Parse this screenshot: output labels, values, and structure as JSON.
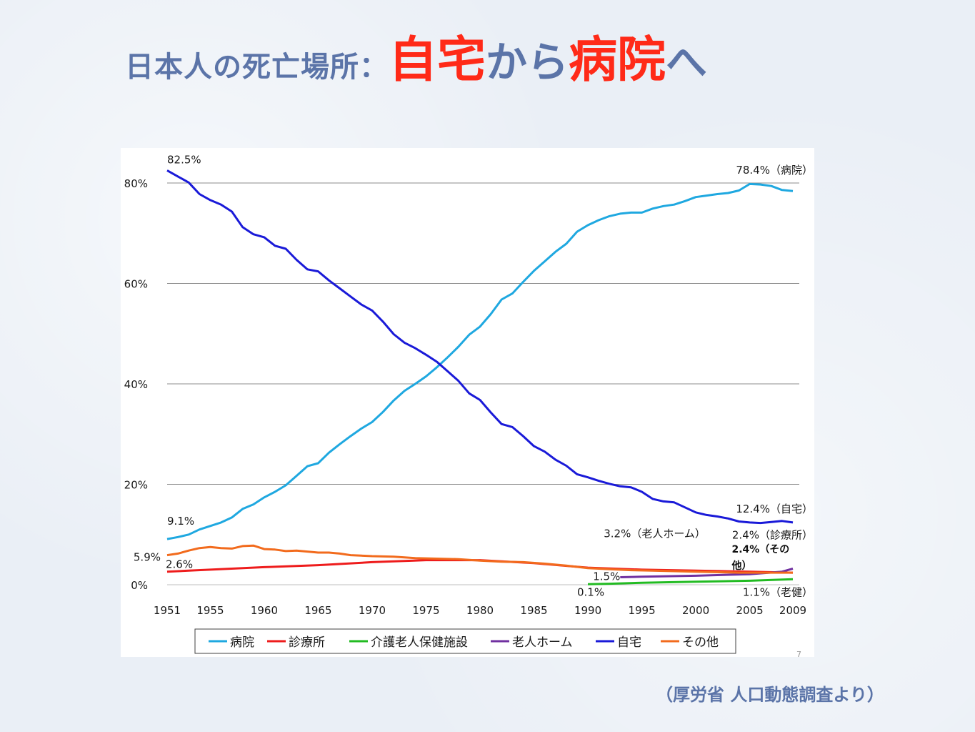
{
  "title": {
    "lead": "日本人の死亡場所：",
    "word1": "自宅",
    "connector": "から",
    "word2": "病院",
    "tail": "へ"
  },
  "source_note": "（厚労省 人口動態調査より）",
  "page_number": "7",
  "colors": {
    "title_blue": "#5b74a8",
    "title_red": "#ff2a18",
    "hospital": "#1fa8e0",
    "clinic": "#ee1c1c",
    "care_facility": "#22bb22",
    "nursing_home": "#7030a0",
    "home": "#1a1ad8",
    "other": "#f26b1d"
  },
  "chart_data": {
    "type": "line",
    "ylim": [
      0,
      85
    ],
    "xlim": [
      1951,
      2009
    ],
    "y_ticks": [
      0,
      20,
      40,
      60,
      80
    ],
    "y_tick_labels": [
      "0%",
      "20%",
      "40%",
      "60%",
      "80%"
    ],
    "x_ticks": [
      1951,
      1955,
      1960,
      1965,
      1970,
      1975,
      1980,
      1985,
      1990,
      1995,
      2000,
      2005,
      2009
    ],
    "x_tick_labels": [
      "1951",
      "1955",
      "1960",
      "1965",
      "1970",
      "1975",
      "1980",
      "1985",
      "1990",
      "1995",
      "2000",
      "2005",
      "2009"
    ],
    "grid": "horizontal",
    "legend_position": "bottom",
    "series": [
      {
        "name": "病院",
        "color": "#1fa8e0",
        "x": [
          1951,
          1952,
          1953,
          1954,
          1955,
          1956,
          1957,
          1958,
          1959,
          1960,
          1961,
          1962,
          1963,
          1964,
          1965,
          1966,
          1967,
          1968,
          1969,
          1970,
          1971,
          1972,
          1973,
          1974,
          1975,
          1976,
          1977,
          1978,
          1979,
          1980,
          1981,
          1982,
          1983,
          1984,
          1985,
          1986,
          1987,
          1988,
          1989,
          1990,
          1991,
          1992,
          1993,
          1994,
          1995,
          1996,
          1997,
          1998,
          1999,
          2000,
          2001,
          2002,
          2003,
          2004,
          2005,
          2006,
          2007,
          2008,
          2009
        ],
        "y": [
          9.1,
          9.5,
          10.0,
          11.0,
          11.7,
          12.4,
          13.4,
          15.1,
          16.0,
          17.4,
          18.5,
          19.8,
          21.7,
          23.6,
          24.2,
          26.3,
          28.0,
          29.6,
          31.1,
          32.4,
          34.4,
          36.7,
          38.6,
          40.0,
          41.5,
          43.3,
          45.3,
          47.4,
          49.8,
          51.4,
          53.9,
          56.8,
          58.0,
          60.3,
          62.5,
          64.4,
          66.3,
          67.9,
          70.3,
          71.6,
          72.6,
          73.4,
          73.9,
          74.1,
          74.1,
          74.9,
          75.4,
          75.7,
          76.4,
          77.2,
          77.5,
          77.8,
          78.0,
          78.5,
          79.8,
          79.7,
          79.4,
          78.6,
          78.4
        ]
      },
      {
        "name": "診療所",
        "color": "#ee1c1c",
        "x": [
          1951,
          1953,
          1955,
          1960,
          1965,
          1970,
          1975,
          1980,
          1985,
          1990,
          1995,
          2000,
          2005,
          2009
        ],
        "y": [
          2.6,
          2.8,
          3.0,
          3.5,
          3.9,
          4.5,
          4.9,
          4.9,
          4.3,
          3.4,
          3.0,
          2.8,
          2.6,
          2.4
        ]
      },
      {
        "name": "介護老人保健施設",
        "color": "#22bb22",
        "x": [
          1990,
          1992,
          1995,
          2000,
          2005,
          2009
        ],
        "y": [
          0.1,
          0.2,
          0.4,
          0.6,
          0.8,
          1.1
        ]
      },
      {
        "name": "老人ホーム",
        "color": "#7030a0",
        "x": [
          1993,
          1995,
          2000,
          2005,
          2008,
          2009
        ],
        "y": [
          1.5,
          1.6,
          1.8,
          2.1,
          2.6,
          3.2
        ]
      },
      {
        "name": "自宅",
        "color": "#1a1ad8",
        "x": [
          1951,
          1952,
          1953,
          1954,
          1955,
          1956,
          1957,
          1958,
          1959,
          1960,
          1961,
          1962,
          1963,
          1964,
          1965,
          1966,
          1967,
          1968,
          1969,
          1970,
          1971,
          1972,
          1973,
          1974,
          1975,
          1976,
          1977,
          1978,
          1979,
          1980,
          1981,
          1982,
          1983,
          1984,
          1985,
          1986,
          1987,
          1988,
          1989,
          1990,
          1991,
          1992,
          1993,
          1994,
          1995,
          1996,
          1997,
          1998,
          1999,
          2000,
          2001,
          2002,
          2003,
          2004,
          2005,
          2006,
          2007,
          2008,
          2009
        ],
        "y": [
          82.5,
          81.3,
          80.1,
          77.8,
          76.6,
          75.7,
          74.3,
          71.2,
          69.8,
          69.2,
          67.5,
          66.9,
          64.7,
          62.8,
          62.4,
          60.6,
          59.0,
          57.4,
          55.8,
          54.6,
          52.4,
          49.9,
          48.2,
          47.1,
          45.8,
          44.4,
          42.5,
          40.6,
          38.1,
          36.8,
          34.3,
          32.0,
          31.4,
          29.6,
          27.6,
          26.5,
          24.9,
          23.7,
          22.0,
          21.4,
          20.7,
          20.1,
          19.6,
          19.4,
          18.5,
          17.1,
          16.6,
          16.4,
          15.4,
          14.4,
          13.9,
          13.6,
          13.2,
          12.6,
          12.4,
          12.3,
          12.5,
          12.7,
          12.4
        ]
      },
      {
        "name": "その他",
        "color": "#f26b1d",
        "x": [
          1951,
          1952,
          1953,
          1954,
          1955,
          1956,
          1957,
          1958,
          1959,
          1960,
          1961,
          1962,
          1963,
          1964,
          1965,
          1966,
          1967,
          1968,
          1969,
          1970,
          1972,
          1974,
          1976,
          1978,
          1980,
          1982,
          1984,
          1986,
          1988,
          1990,
          1992,
          1994,
          1996,
          1998,
          2000,
          2002,
          2004,
          2006,
          2008,
          2009
        ],
        "y": [
          5.9,
          6.2,
          6.8,
          7.3,
          7.5,
          7.3,
          7.2,
          7.7,
          7.8,
          7.1,
          7.0,
          6.7,
          6.8,
          6.6,
          6.4,
          6.4,
          6.2,
          5.9,
          5.8,
          5.7,
          5.6,
          5.3,
          5.2,
          5.1,
          4.8,
          4.6,
          4.5,
          4.2,
          3.8,
          3.3,
          3.1,
          2.9,
          2.8,
          2.7,
          2.6,
          2.5,
          2.4,
          2.4,
          2.4,
          2.4
        ]
      }
    ],
    "annotations": [
      {
        "text": "82.5%",
        "year": 1951,
        "value": 82.5,
        "anchor": "start",
        "dx": 0,
        "dy": -10
      },
      {
        "text": "78.4%（病院）",
        "year": 2009,
        "value": 78.4,
        "anchor": "end",
        "dx": 28,
        "dy": -24
      },
      {
        "text": "12.4%（自宅）",
        "year": 2009,
        "value": 12.4,
        "anchor": "end",
        "dx": 28,
        "dy": -14
      },
      {
        "text": "9.1%",
        "year": 1951,
        "value": 9.1,
        "anchor": "start",
        "dx": 0,
        "dy": -20
      },
      {
        "text": "5.9%",
        "year": 1951,
        "value": 5.9,
        "anchor": "end",
        "dx": -9,
        "dy": 8
      },
      {
        "text": "2.6%",
        "year": 1951,
        "value": 2.6,
        "anchor": "start",
        "dx": -2,
        "dy": -5
      },
      {
        "text": "3.2%（老人ホーム）",
        "year": 1992,
        "value": 9.5,
        "anchor": "start",
        "dx": -8,
        "dy": 0
      },
      {
        "text": "2.4%（診療所）",
        "year": 2009,
        "value": 9.2,
        "anchor": "end",
        "dx": 28,
        "dy": 0
      },
      {
        "text": "1.5%",
        "year": 1993,
        "value": 1.5,
        "anchor": "end",
        "dx": 0,
        "dy": 4
      },
      {
        "text": "0.1%",
        "year": 1990,
        "value": 0.1,
        "anchor": "middle",
        "dx": 4,
        "dy": 16
      },
      {
        "text": "1.1%（老健）",
        "year": 2009,
        "value": 1.1,
        "anchor": "end",
        "dx": 28,
        "dy": 23
      }
    ],
    "bold_annotation": {
      "line1": "2.4%（その",
      "line2": "他）",
      "year": 2004,
      "value": 6.4
    }
  }
}
